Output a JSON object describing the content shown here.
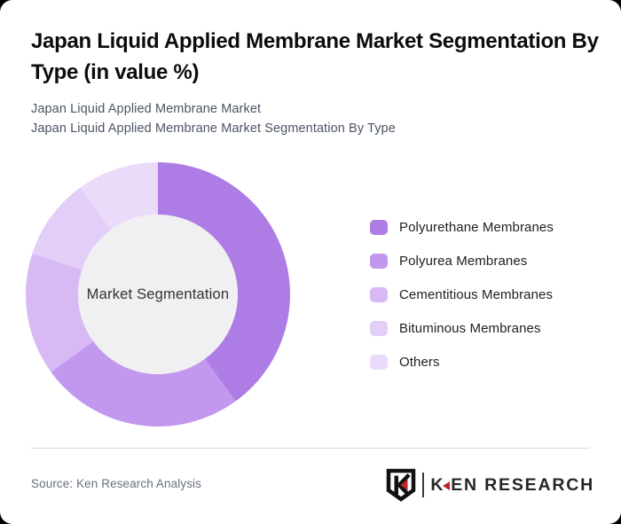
{
  "card": {
    "title": "Japan Liquid Applied Membrane Market Segmentation By Type (in value %)",
    "subtitle_line1": "Japan Liquid Applied Membrane Market",
    "subtitle_line2": "Japan Liquid Applied Membrane Market Segmentation By Type"
  },
  "chart_data": {
    "type": "pie",
    "variant": "donut",
    "title": "Japan Liquid Applied Membrane Market Segmentation By Type (in value %)",
    "center_label": "Market Segmentation",
    "categories": [
      "Polyurethane Membranes",
      "Polyurea Membranes",
      "Cementitious Membranes",
      "Bituminous Membranes",
      "Others"
    ],
    "values": [
      40,
      25,
      15,
      10,
      10
    ],
    "unit": "value %",
    "colors": [
      "#ad7ce4",
      "#c297ee",
      "#d7baf3",
      "#e2cef7",
      "#ebdbfa"
    ],
    "center_fill": "#f0eff1",
    "start_angle_deg": 0,
    "direction": "clockwise",
    "legend_position": "right",
    "data_labels": false,
    "note": "values estimated from arc angles; no numeric labels shown in source image"
  },
  "footer": {
    "source": "Source: Ken Research Analysis",
    "logo_text_k": "K",
    "logo_text_rest": "EN RESEARCH"
  }
}
